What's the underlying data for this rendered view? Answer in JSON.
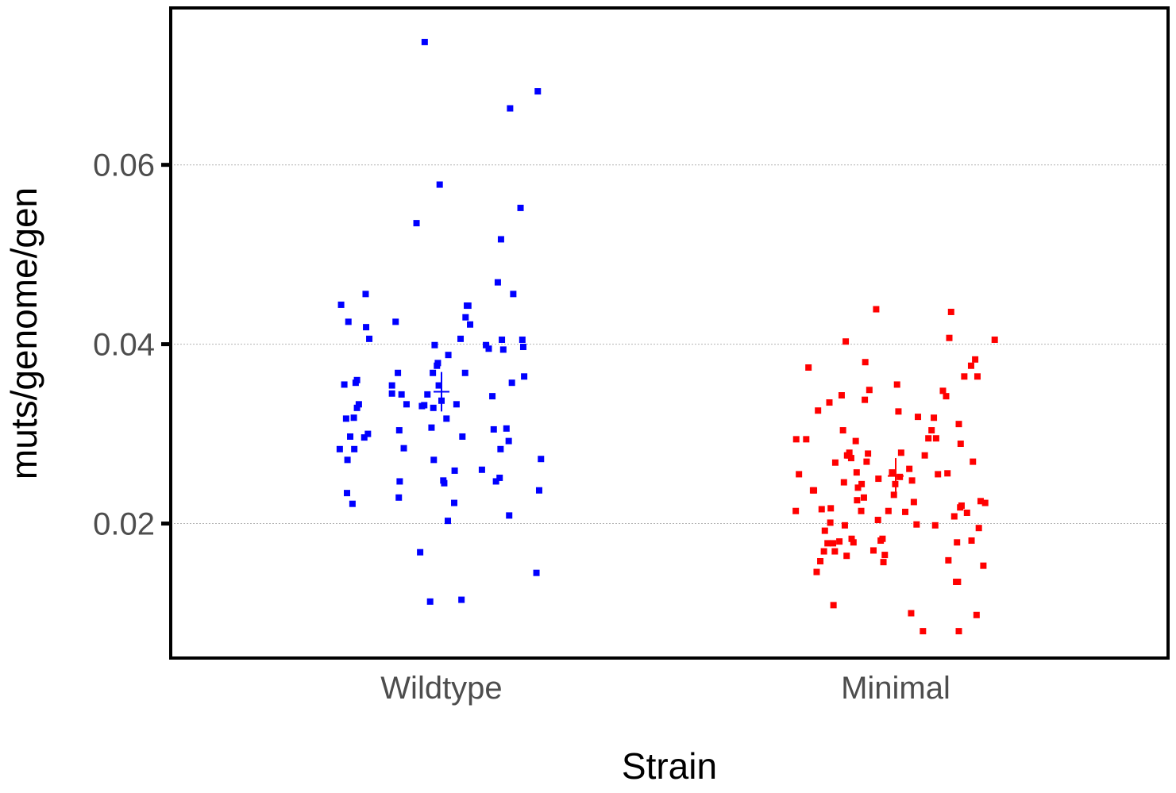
{
  "chart_data": {
    "type": "scatter",
    "title": "",
    "xlabel": "Strain",
    "ylabel": "muts/genome/gen",
    "categories": [
      "Wildtype",
      "Minimal"
    ],
    "ylim": [
      0.005,
      0.0775
    ],
    "yticks": [
      0.02,
      0.04,
      0.06
    ],
    "ytick_labels": [
      "0.02",
      "0.04",
      "0.06"
    ],
    "grid": "horizontal-major",
    "legend": "none",
    "series": [
      {
        "category": "Wildtype",
        "color": "#0000ff",
        "mean": 0.0347,
        "error": 0.0022,
        "points": [
          [
            -0.224,
            0.0283
          ],
          [
            -0.221,
            0.0444
          ],
          [
            -0.214,
            0.0355
          ],
          [
            -0.21,
            0.0317
          ],
          [
            -0.207,
            0.0271
          ],
          [
            -0.208,
            0.0234
          ],
          [
            -0.205,
            0.0425
          ],
          [
            -0.201,
            0.0297
          ],
          [
            -0.196,
            0.0222
          ],
          [
            -0.193,
            0.0318
          ],
          [
            -0.192,
            0.0283
          ],
          [
            -0.189,
            0.0357
          ],
          [
            -0.186,
            0.036
          ],
          [
            -0.186,
            0.0329
          ],
          [
            -0.182,
            0.0333
          ],
          [
            -0.17,
            0.0296
          ],
          [
            -0.167,
            0.0456
          ],
          [
            -0.166,
            0.0419
          ],
          [
            -0.162,
            0.03
          ],
          [
            -0.159,
            0.0406
          ],
          [
            -0.109,
            0.0354
          ],
          [
            -0.109,
            0.0345
          ],
          [
            -0.101,
            0.0425
          ],
          [
            -0.096,
            0.0368
          ],
          [
            -0.094,
            0.0229
          ],
          [
            -0.093,
            0.0304
          ],
          [
            -0.092,
            0.0247
          ],
          [
            -0.088,
            0.0344
          ],
          [
            -0.083,
            0.0284
          ],
          [
            -0.077,
            0.0333
          ],
          [
            -0.055,
            0.0535
          ],
          [
            -0.047,
            0.0168
          ],
          [
            -0.043,
            0.0331
          ],
          [
            -0.038,
            0.0332
          ],
          [
            -0.037,
            0.0737
          ],
          [
            -0.031,
            0.0344
          ],
          [
            -0.025,
            0.0113
          ],
          [
            -0.022,
            0.0307
          ],
          [
            -0.019,
            0.0368
          ],
          [
            -0.018,
            0.0329
          ],
          [
            -0.017,
            0.0271
          ],
          [
            -0.015,
            0.0399
          ],
          [
            -0.01,
            0.0376
          ],
          [
            -0.008,
            0.0379
          ],
          [
            -0.006,
            0.0354
          ],
          [
            -0.004,
            0.0578
          ],
          [
            0.0,
            0.0337
          ],
          [
            0.004,
            0.0248
          ],
          [
            0.006,
            0.0245
          ],
          [
            0.011,
            0.0317
          ],
          [
            0.014,
            0.0203
          ],
          [
            0.015,
            0.0388
          ],
          [
            0.028,
            0.0223
          ],
          [
            0.029,
            0.0259
          ],
          [
            0.033,
            0.0333
          ],
          [
            0.042,
            0.0406
          ],
          [
            0.044,
            0.0115
          ],
          [
            0.046,
            0.0297
          ],
          [
            0.053,
            0.043
          ],
          [
            0.052,
            0.0368
          ],
          [
            0.056,
            0.0443
          ],
          [
            0.059,
            0.0443
          ],
          [
            0.063,
            0.0422
          ],
          [
            0.089,
            0.026
          ],
          [
            0.098,
            0.0399
          ],
          [
            0.104,
            0.0395
          ],
          [
            0.112,
            0.0342
          ],
          [
            0.115,
            0.0305
          ],
          [
            0.12,
            0.0247
          ],
          [
            0.124,
            0.0469
          ],
          [
            0.128,
            0.0251
          ],
          [
            0.13,
            0.0283
          ],
          [
            0.131,
            0.0517
          ],
          [
            0.133,
            0.0405
          ],
          [
            0.136,
            0.0394
          ],
          [
            0.143,
            0.0306
          ],
          [
            0.148,
            0.0292
          ],
          [
            0.149,
            0.0209
          ],
          [
            0.151,
            0.0663
          ],
          [
            0.155,
            0.0357
          ],
          [
            0.158,
            0.0456
          ],
          [
            0.174,
            0.0552
          ],
          [
            0.178,
            0.0405
          ],
          [
            0.18,
            0.0397
          ],
          [
            0.182,
            0.0364
          ],
          [
            0.209,
            0.0145
          ],
          [
            0.212,
            0.0682
          ],
          [
            0.215,
            0.0237
          ],
          [
            0.219,
            0.0272
          ]
        ]
      },
      {
        "category": "Minimal",
        "color": "#ff0000",
        "mean": 0.0253,
        "error": 0.002,
        "points": [
          [
            -0.22,
            0.0214
          ],
          [
            -0.219,
            0.0294
          ],
          [
            -0.213,
            0.0255
          ],
          [
            -0.197,
            0.0294
          ],
          [
            -0.192,
            0.0374
          ],
          [
            -0.182,
            0.0237
          ],
          [
            -0.18,
            0.0237
          ],
          [
            -0.174,
            0.0146
          ],
          [
            -0.171,
            0.0326
          ],
          [
            -0.166,
            0.0158
          ],
          [
            -0.163,
            0.0216
          ],
          [
            -0.158,
            0.0169
          ],
          [
            -0.156,
            0.0192
          ],
          [
            -0.15,
            0.0178
          ],
          [
            -0.146,
            0.0335
          ],
          [
            -0.144,
            0.0201
          ],
          [
            -0.143,
            0.0217
          ],
          [
            -0.138,
            0.0178
          ],
          [
            -0.137,
            0.0109
          ],
          [
            -0.134,
            0.0169
          ],
          [
            -0.133,
            0.0268
          ],
          [
            -0.124,
            0.018
          ],
          [
            -0.119,
            0.0343
          ],
          [
            -0.116,
            0.0304
          ],
          [
            -0.114,
            0.0246
          ],
          [
            -0.112,
            0.0198
          ],
          [
            -0.11,
            0.0403
          ],
          [
            -0.108,
            0.0164
          ],
          [
            -0.107,
            0.0276
          ],
          [
            -0.104,
            0.0276
          ],
          [
            -0.102,
            0.0279
          ],
          [
            -0.098,
            0.0273
          ],
          [
            -0.097,
            0.0183
          ],
          [
            -0.093,
            0.0179
          ],
          [
            -0.088,
            0.0292
          ],
          [
            -0.086,
            0.0257
          ],
          [
            -0.085,
            0.0226
          ],
          [
            -0.083,
            0.024
          ],
          [
            -0.076,
            0.0214
          ],
          [
            -0.075,
            0.0244
          ],
          [
            -0.07,
            0.0229
          ],
          [
            -0.068,
            0.0338
          ],
          [
            -0.067,
            0.038
          ],
          [
            -0.064,
            0.0269
          ],
          [
            -0.061,
            0.0278
          ],
          [
            -0.058,
            0.0349
          ],
          [
            -0.049,
            0.017
          ],
          [
            -0.043,
            0.0439
          ],
          [
            -0.039,
            0.0204
          ],
          [
            -0.038,
            0.025
          ],
          [
            -0.033,
            0.0181
          ],
          [
            -0.029,
            0.0183
          ],
          [
            -0.027,
            0.0157
          ],
          [
            -0.024,
            0.0165
          ],
          [
            -0.016,
            0.0214
          ],
          [
            -0.008,
            0.0257
          ],
          [
            -0.004,
            0.0232
          ],
          [
            -0.001,
            0.0244
          ],
          [
            0.003,
            0.0355
          ],
          [
            0.006,
            0.0325
          ],
          [
            0.009,
            0.0252
          ],
          [
            0.012,
            0.0279
          ],
          [
            0.021,
            0.0213
          ],
          [
            0.03,
            0.0261
          ],
          [
            0.034,
            0.01
          ],
          [
            0.036,
            0.0248
          ],
          [
            0.04,
            0.0224
          ],
          [
            0.046,
            0.0199
          ],
          [
            0.049,
            0.0319
          ],
          [
            0.064,
            0.0276
          ],
          [
            0.072,
            0.0295
          ],
          [
            0.079,
            0.0304
          ],
          [
            0.084,
            0.0318
          ],
          [
            0.087,
            0.0198
          ],
          [
            0.089,
            0.0295
          ],
          [
            0.093,
            0.0255
          ],
          [
            0.104,
            0.0348
          ],
          [
            0.111,
            0.0342
          ],
          [
            0.114,
            0.0256
          ],
          [
            0.116,
            0.0159
          ],
          [
            0.118,
            0.0407
          ],
          [
            0.122,
            0.0436
          ],
          [
            0.129,
            0.0208
          ],
          [
            0.133,
            0.0135
          ],
          [
            0.135,
            0.0179
          ],
          [
            0.137,
            0.0135
          ],
          [
            0.139,
            0.0311
          ],
          [
            0.142,
            0.0218
          ],
          [
            0.143,
            0.0289
          ],
          [
            0.145,
            0.022
          ],
          [
            0.151,
            0.0364
          ],
          [
            0.157,
            0.0212
          ],
          [
            0.166,
            0.0376
          ],
          [
            0.167,
            0.0181
          ],
          [
            0.17,
            0.0269
          ],
          [
            0.175,
            0.0383
          ],
          [
            0.178,
            0.0098
          ],
          [
            0.18,
            0.0364
          ],
          [
            0.183,
            0.0195
          ],
          [
            0.187,
            0.0225
          ],
          [
            0.193,
            0.0153
          ],
          [
            0.197,
            0.0223
          ],
          [
            0.218,
            0.0405
          ],
          [
            0.139,
            0.008
          ],
          [
            0.06,
            0.008
          ]
        ]
      }
    ]
  }
}
